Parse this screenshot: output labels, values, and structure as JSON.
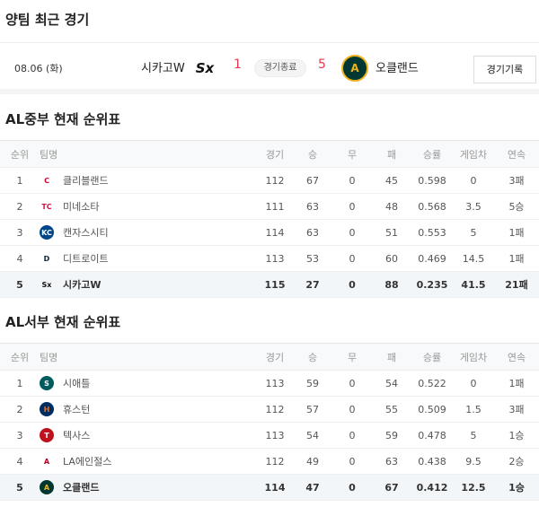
{
  "recent": {
    "title": "양팀 최근 경기",
    "date": "08.06 (화)",
    "away": {
      "name": "시카고W",
      "score": "1",
      "logo": "white-sox-logo"
    },
    "status": "경기종료",
    "home": {
      "name": "오클랜드",
      "score": "5",
      "logo": "athletics-logo"
    },
    "record_button": "경기기록"
  },
  "headers": [
    "순위",
    "팀명",
    "경기",
    "승",
    "무",
    "패",
    "승률",
    "게임차",
    "연속"
  ],
  "tables": [
    {
      "title": "AL중부 현재 순위표",
      "rows": [
        {
          "rank": "1",
          "team": "클리블랜드",
          "g": "112",
          "w": "67",
          "d": "0",
          "l": "45",
          "pct": "0.598",
          "gb": "0",
          "streak": "3패",
          "logo": "C",
          "color": "#d50032",
          "bg": "transparent"
        },
        {
          "rank": "2",
          "team": "미네소타",
          "g": "111",
          "w": "63",
          "d": "0",
          "l": "48",
          "pct": "0.568",
          "gb": "3.5",
          "streak": "5승",
          "logo": "TC",
          "color": "#d31145",
          "bg": "transparent"
        },
        {
          "rank": "3",
          "team": "캔자스시티",
          "g": "114",
          "w": "63",
          "d": "0",
          "l": "51",
          "pct": "0.553",
          "gb": "5",
          "streak": "1패",
          "logo": "KC",
          "color": "#fff",
          "bg": "#004687"
        },
        {
          "rank": "4",
          "team": "디트로이트",
          "g": "113",
          "w": "53",
          "d": "0",
          "l": "60",
          "pct": "0.469",
          "gb": "14.5",
          "streak": "1패",
          "logo": "D",
          "color": "#0c2340",
          "bg": "transparent"
        },
        {
          "rank": "5",
          "team": "시카고W",
          "g": "115",
          "w": "27",
          "d": "0",
          "l": "88",
          "pct": "0.235",
          "gb": "41.5",
          "streak": "21패",
          "logo": "Sx",
          "color": "#111",
          "bg": "transparent",
          "highlight": true
        }
      ]
    },
    {
      "title": "AL서부 현재 순위표",
      "rows": [
        {
          "rank": "1",
          "team": "시애틀",
          "g": "113",
          "w": "59",
          "d": "0",
          "l": "54",
          "pct": "0.522",
          "gb": "0",
          "streak": "1패",
          "logo": "S",
          "color": "#fff",
          "bg": "#005c5c"
        },
        {
          "rank": "2",
          "team": "휴스턴",
          "g": "112",
          "w": "57",
          "d": "0",
          "l": "55",
          "pct": "0.509",
          "gb": "1.5",
          "streak": "3패",
          "logo": "H",
          "color": "#eb6e1f",
          "bg": "#002d62"
        },
        {
          "rank": "3",
          "team": "텍사스",
          "g": "113",
          "w": "54",
          "d": "0",
          "l": "59",
          "pct": "0.478",
          "gb": "5",
          "streak": "1승",
          "logo": "T",
          "color": "#fff",
          "bg": "#c0111f"
        },
        {
          "rank": "4",
          "team": "LA에인절스",
          "g": "112",
          "w": "49",
          "d": "0",
          "l": "63",
          "pct": "0.438",
          "gb": "9.5",
          "streak": "2승",
          "logo": "A",
          "color": "#ba0021",
          "bg": "transparent"
        },
        {
          "rank": "5",
          "team": "오클랜드",
          "g": "114",
          "w": "47",
          "d": "0",
          "l": "67",
          "pct": "0.412",
          "gb": "12.5",
          "streak": "1승",
          "logo": "A",
          "color": "#efb21e",
          "bg": "#003831",
          "highlight": true
        }
      ]
    }
  ]
}
